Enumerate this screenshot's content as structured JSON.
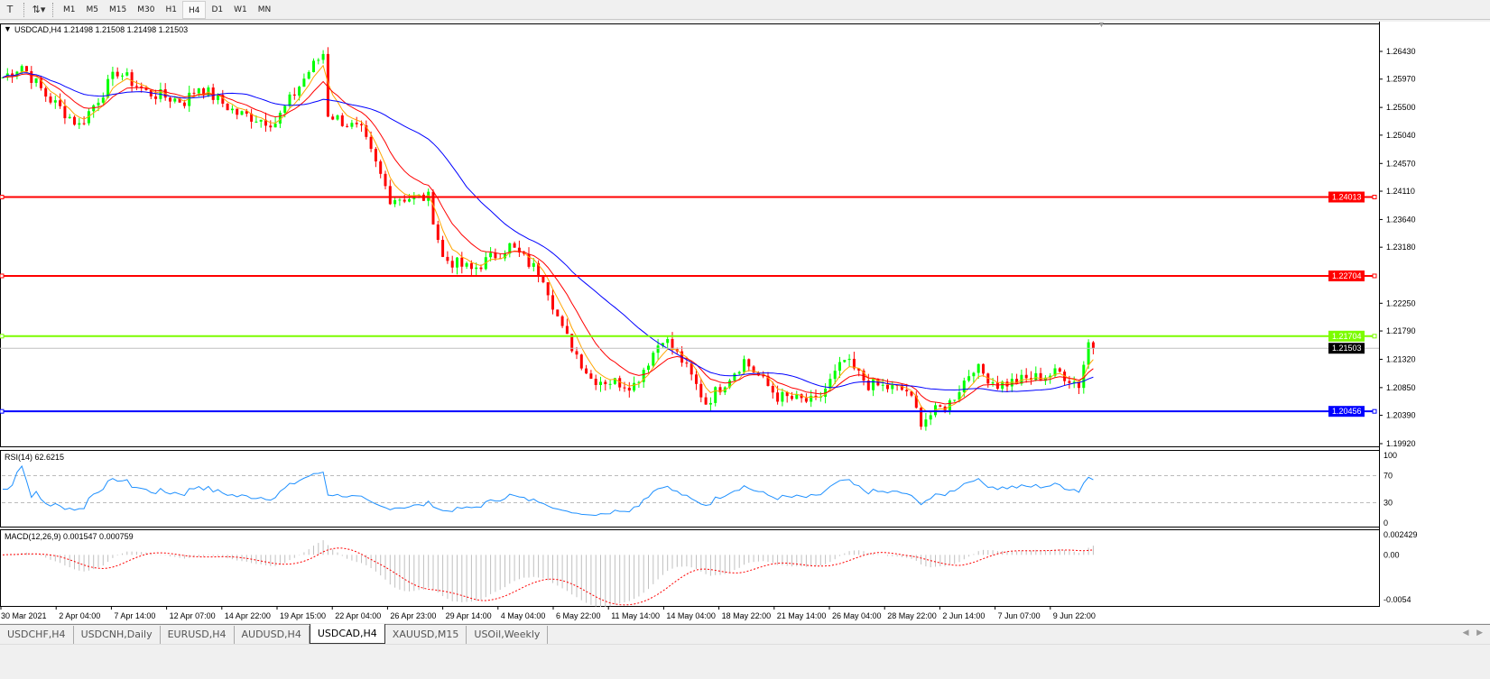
{
  "toolbar": {
    "timeframes": [
      "M1",
      "M5",
      "M15",
      "M30",
      "H1",
      "H4",
      "D1",
      "W1",
      "MN"
    ],
    "active_timeframe": "H4"
  },
  "chart": {
    "header": "USDCAD,H4  1.21498 1.21508 1.21498 1.21503",
    "price_axis": [
      "1.26430",
      "1.25970",
      "1.25500",
      "1.25040",
      "1.24570",
      "1.24110",
      "1.23640",
      "1.23180",
      "1.22250",
      "1.21790",
      "1.21320",
      "1.20850",
      "1.20390",
      "1.19920"
    ],
    "price_range": [
      1.1992,
      1.2643
    ],
    "levels": [
      {
        "price": 1.24013,
        "label": "1.24013",
        "color": "#ff0000"
      },
      {
        "price": 1.22704,
        "label": "1.22704",
        "color": "#ff0000"
      },
      {
        "price": 1.21704,
        "label": "1.21704",
        "color": "#7cfc00"
      },
      {
        "price": 1.20456,
        "label": "1.20456",
        "color": "#0000ff"
      }
    ],
    "bid": {
      "price": 1.21503,
      "label": "1.21503"
    },
    "candle_colors": {
      "up": "#00ff00",
      "down": "#ff0000",
      "ma_fast": "#ffa500",
      "ma_mid": "#ff0000",
      "ma_slow": "#0000ff"
    },
    "price_path": [
      [
        0,
        1.26
      ],
      [
        4,
        1.262
      ],
      [
        9,
        1.257
      ],
      [
        16,
        1.252
      ],
      [
        24,
        1.261
      ],
      [
        30,
        1.2575
      ],
      [
        38,
        1.256
      ],
      [
        41,
        1.2585
      ],
      [
        49,
        1.254
      ],
      [
        57,
        1.2525
      ],
      [
        64,
        1.261
      ],
      [
        67,
        1.264
      ],
      [
        68,
        1.254
      ],
      [
        75,
        1.251
      ],
      [
        81,
        1.24
      ],
      [
        89,
        1.24
      ],
      [
        92,
        1.23
      ],
      [
        98,
        1.228
      ],
      [
        106,
        1.232
      ],
      [
        113,
        1.227
      ],
      [
        117,
        1.218
      ],
      [
        123,
        1.21
      ],
      [
        132,
        1.209
      ],
      [
        138,
        1.217
      ],
      [
        142,
        1.213
      ],
      [
        147,
        1.206
      ],
      [
        155,
        1.213
      ],
      [
        162,
        1.207
      ],
      [
        170,
        1.206
      ],
      [
        176,
        1.213
      ],
      [
        181,
        1.209
      ],
      [
        189,
        1.208
      ],
      [
        192,
        1.203
      ],
      [
        198,
        1.206
      ],
      [
        203,
        1.212
      ],
      [
        208,
        1.209
      ],
      [
        215,
        1.21
      ],
      [
        221,
        1.211
      ],
      [
        225,
        1.209
      ],
      [
        227,
        1.216
      ],
      [
        228,
        1.215
      ]
    ]
  },
  "rsi": {
    "label": "RSI(14) 62.6215",
    "axis": [
      "100",
      "70",
      "30",
      "0"
    ],
    "levels": [
      70,
      30
    ],
    "color": "#1e90ff"
  },
  "macd": {
    "label": "MACD(12,26,9) 0.001547 0.000759",
    "axis": [
      "0.002429",
      "0.00",
      "-0.0054"
    ]
  },
  "time_axis": [
    "30 Mar 2021",
    "2 Apr 04:00",
    "7 Apr 14:00",
    "12 Apr 07:00",
    "14 Apr 22:00",
    "19 Apr 15:00",
    "22 Apr 04:00",
    "26 Apr 23:00",
    "29 Apr 14:00",
    "4 May 04:00",
    "6 May 22:00",
    "11 May 14:00",
    "14 May 04:00",
    "18 May 22:00",
    "21 May 14:00",
    "26 May 04:00",
    "28 May 22:00",
    "2 Jun 14:00",
    "7 Jun 07:00",
    "9 Jun 22:00"
  ],
  "tabs": [
    "USDCHF,H4",
    "USDCNH,Daily",
    "EURUSD,H4",
    "AUDUSD,H4",
    "USDCAD,H4",
    "XAUUSD,M15",
    "USOil,Weekly"
  ],
  "active_tab": "USDCAD,H4"
}
